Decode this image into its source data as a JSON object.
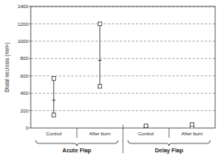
{
  "chart_data": {
    "type": "range",
    "y_label": "Distal necrosis (mm²)",
    "categories": [
      "Control",
      "After burn",
      "Control",
      "After burn"
    ],
    "groups": [
      "Acute Flap",
      "Delay Flap"
    ],
    "values": [
      320,
      780,
      15,
      20
    ],
    "low": [
      150,
      480,
      5,
      5
    ],
    "high": [
      570,
      1200,
      25,
      40
    ],
    "marker": "square",
    "color": "#333333",
    "ylim": [
      0,
      1400
    ],
    "yticks": [
      0,
      200,
      400,
      600,
      800,
      1000,
      1200,
      1400
    ],
    "grid": true
  }
}
